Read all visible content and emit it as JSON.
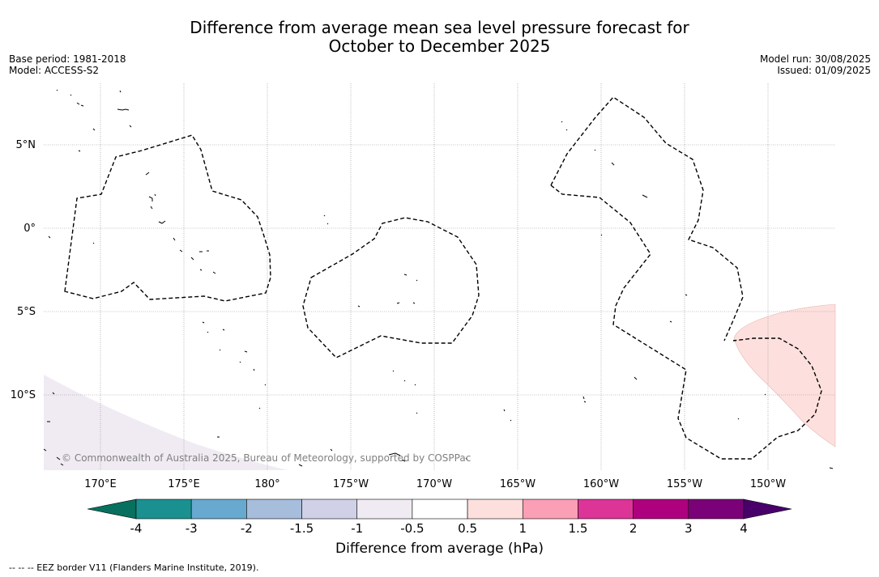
{
  "title": {
    "line1": "Difference from average mean sea level pressure forecast for",
    "line2": "October to December 2025"
  },
  "meta_left": {
    "base_period": "Base period: 1981-2018",
    "model": "Model: ACCESS-S2"
  },
  "meta_right": {
    "model_run": "Model run: 30/08/2025",
    "issued": "Issued: 01/09/2025"
  },
  "map": {
    "lat_labels": [
      "5°N",
      "0°",
      "5°S",
      "10°S"
    ],
    "lon_labels": [
      "170°E",
      "175°E",
      "180°",
      "175°W",
      "170°W",
      "165°W",
      "160°W",
      "155°W",
      "150°W"
    ],
    "credit": "© Commonwealth of Australia 2025, Bureau of Meteorology, supported by COSPPac",
    "regions": [
      {
        "name": "positive-anomaly-east",
        "category": "0.5 to 1",
        "color": "#fde0dd"
      },
      {
        "name": "negative-anomaly-southwest",
        "category": "-1 to -0.5",
        "color": "#f0ebf3"
      }
    ]
  },
  "colorbar": {
    "ticks": [
      "-4",
      "-3",
      "-2",
      "-1.5",
      "-1",
      "-0.5",
      "0.5",
      "1",
      "1.5",
      "2",
      "3",
      "4"
    ],
    "colors": [
      "#1a9190",
      "#67a9cf",
      "#a6bddb",
      "#d0d1e6",
      "#f0ebf3",
      "#ffffff",
      "#fde0dd",
      "#fa9fb5",
      "#dd3497",
      "#ae017e",
      "#7a0177"
    ],
    "extend_low": "#08705e",
    "extend_high": "#49006a",
    "label": "Difference from average (hPa)"
  },
  "footnote": "--  --  -- EEZ border V11 (Flanders Marine Institute, 2019)."
}
